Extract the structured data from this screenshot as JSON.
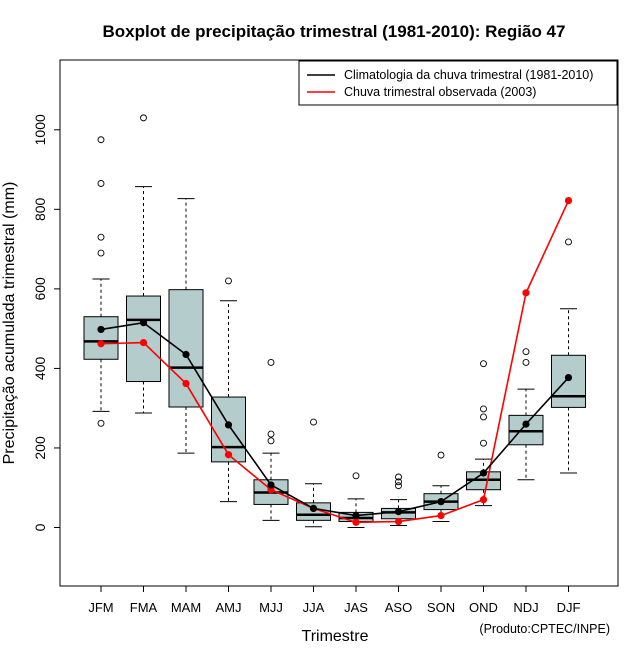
{
  "chart_data": {
    "type": "boxplot",
    "title": "Boxplot de precipitação trimestral (1981-2010): Região 47",
    "xlabel": "Trimestre",
    "ylabel": "Precipitação acumulada trimestral (mm)",
    "credit": "(Produto:CPTEC/INPE)",
    "ylim": [
      -145,
      1175
    ],
    "yticks": [
      0,
      200,
      400,
      600,
      800,
      1000
    ],
    "categories": [
      "JFM",
      "FMA",
      "MAM",
      "AMJ",
      "MJJ",
      "JJA",
      "JAS",
      "ASO",
      "SON",
      "OND",
      "NDJ",
      "DJF"
    ],
    "boxes": [
      {
        "whisker_low": 292,
        "q1": 423,
        "median": 468,
        "q3": 530,
        "whisker_high": 625,
        "outliers": [
          262,
          690,
          730,
          865,
          975
        ]
      },
      {
        "whisker_low": 288,
        "q1": 367,
        "median": 522,
        "q3": 582,
        "whisker_high": 857,
        "outliers": [
          1030
        ]
      },
      {
        "whisker_low": 187,
        "q1": 303,
        "median": 402,
        "q3": 598,
        "whisker_high": 827,
        "outliers": []
      },
      {
        "whisker_low": 65,
        "q1": 165,
        "median": 202,
        "q3": 328,
        "whisker_high": 570,
        "outliers": [
          620
        ]
      },
      {
        "whisker_low": 18,
        "q1": 58,
        "median": 88,
        "q3": 120,
        "whisker_high": 187,
        "outliers": [
          218,
          235,
          415
        ]
      },
      {
        "whisker_low": 2,
        "q1": 18,
        "median": 32,
        "q3": 62,
        "whisker_high": 110,
        "outliers": [
          265
        ]
      },
      {
        "whisker_low": 0,
        "q1": 15,
        "median": 24,
        "q3": 38,
        "whisker_high": 72,
        "outliers": [
          130
        ]
      },
      {
        "whisker_low": 5,
        "q1": 22,
        "median": 38,
        "q3": 48,
        "whisker_high": 70,
        "outliers": [
          105,
          115,
          127
        ]
      },
      {
        "whisker_low": 15,
        "q1": 45,
        "median": 65,
        "q3": 85,
        "whisker_high": 105,
        "outliers": [
          182
        ]
      },
      {
        "whisker_low": 55,
        "q1": 95,
        "median": 120,
        "q3": 140,
        "whisker_high": 172,
        "outliers": [
          212,
          278,
          298,
          412
        ]
      },
      {
        "whisker_low": 120,
        "q1": 208,
        "median": 242,
        "q3": 282,
        "whisker_high": 348,
        "outliers": [
          415,
          442
        ]
      },
      {
        "whisker_low": 137,
        "q1": 302,
        "median": 330,
        "q3": 433,
        "whisker_high": 550,
        "outliers": [
          718
        ]
      }
    ],
    "series": [
      {
        "name": "Climatologia da chuva trimestral (1981-2010)",
        "color": "#000000",
        "values": [
          498,
          515,
          435,
          258,
          107,
          48,
          30,
          40,
          65,
          137,
          260,
          377
        ]
      },
      {
        "name": "Chuva trimestral observada (2003)",
        "color": "#ff0000",
        "values": [
          462,
          465,
          362,
          183,
          95,
          48,
          13,
          15,
          30,
          70,
          590,
          822
        ]
      }
    ],
    "legend_position": "top-right",
    "box_fill": "#b4cccc"
  }
}
